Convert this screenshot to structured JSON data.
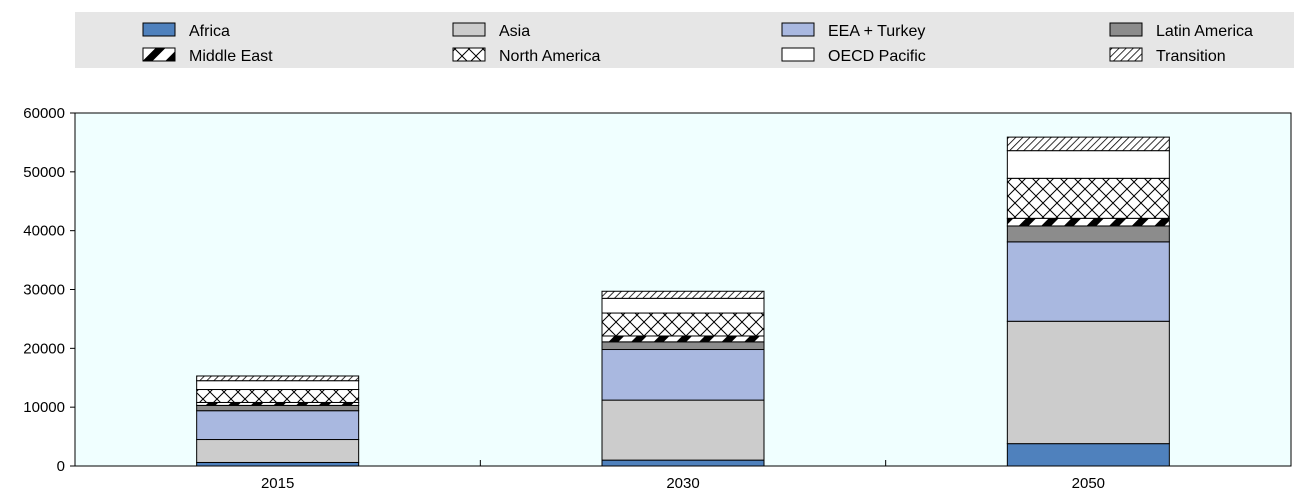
{
  "chart_data": {
    "type": "bar",
    "stacked": true,
    "title": "",
    "xlabel": "",
    "ylabel": "",
    "categories": [
      "2015",
      "2030",
      "2050"
    ],
    "ylim": [
      0,
      60000
    ],
    "yticks": [
      0,
      10000,
      20000,
      30000,
      40000,
      50000,
      60000
    ],
    "grid": false,
    "plot_background": "#f0ffff",
    "legend_position": "top",
    "series": [
      {
        "name": "Africa",
        "values": [
          600,
          1000,
          3800
        ],
        "color": "#4f81bd",
        "pattern": "solid"
      },
      {
        "name": "Asia",
        "values": [
          3900,
          10200,
          20800
        ],
        "color": "#cccccc",
        "pattern": "solid"
      },
      {
        "name": "EEA + Turkey",
        "values": [
          4900,
          8600,
          13500
        ],
        "color": "#a9b8e0",
        "pattern": "solid"
      },
      {
        "name": "Latin America",
        "values": [
          900,
          1300,
          2700
        ],
        "color": "#8c8c8c",
        "pattern": "solid"
      },
      {
        "name": "Middle East",
        "values": [
          500,
          1000,
          1300
        ],
        "color": "#ffffff",
        "pattern": "diagonal-thick"
      },
      {
        "name": "North America",
        "values": [
          2200,
          3900,
          6800
        ],
        "color": "#ffffff",
        "pattern": "crosshatch"
      },
      {
        "name": "OECD Pacific",
        "values": [
          1500,
          2500,
          4700
        ],
        "color": "#ffffff",
        "pattern": "none"
      },
      {
        "name": "Transition",
        "values": [
          800,
          1200,
          2300
        ],
        "color": "#ffffff",
        "pattern": "diagonal-thin"
      }
    ]
  }
}
